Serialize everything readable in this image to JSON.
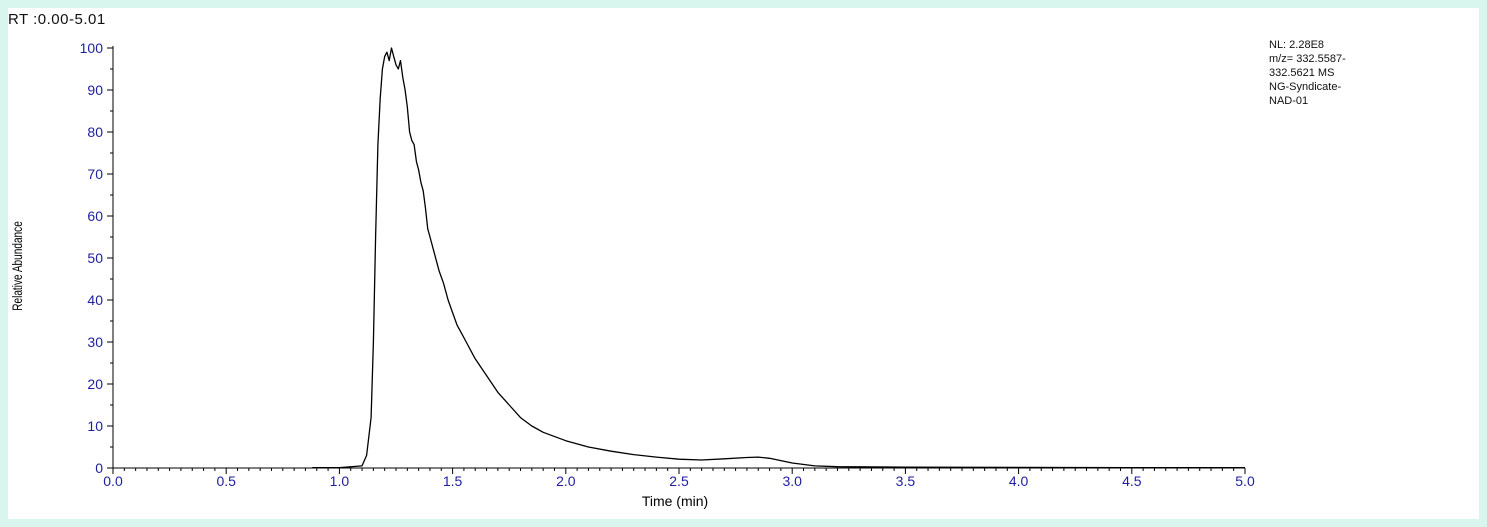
{
  "header": {
    "rt_range": "RT :0.00-5.01"
  },
  "info": {
    "lines": [
      "NL: 2.28E8",
      "m/z= 332.5587-",
      "332.5621 MS",
      "NG-Syndicate-",
      "NAD-01"
    ]
  },
  "colors": {
    "page_background": "#d8f6ee",
    "tick_label": "#1e1ea0",
    "trace": "#000000"
  },
  "chart_data": {
    "type": "line",
    "title": "",
    "xlabel": "Time (min)",
    "ylabel": "Relative Abundance",
    "xlim": [
      0.0,
      5.0
    ],
    "ylim": [
      0,
      100
    ],
    "x_ticks": [
      "0.0",
      "0.5",
      "1.0",
      "1.5",
      "2.0",
      "2.5",
      "3.0",
      "3.5",
      "4.0",
      "4.5",
      "5.0"
    ],
    "y_ticks": [
      "0",
      "10",
      "20",
      "30",
      "40",
      "50",
      "60",
      "70",
      "80",
      "90",
      "100"
    ],
    "grid": false,
    "series": [
      {
        "x": [
          0.88,
          1.0,
          1.1,
          1.12,
          1.14,
          1.15,
          1.16,
          1.17,
          1.18,
          1.19,
          1.2,
          1.21,
          1.22,
          1.23,
          1.24,
          1.25,
          1.26,
          1.27,
          1.28,
          1.29,
          1.3,
          1.31,
          1.32,
          1.33,
          1.34,
          1.35,
          1.36,
          1.37,
          1.38,
          1.39,
          1.4,
          1.42,
          1.44,
          1.46,
          1.48,
          1.5,
          1.52,
          1.54,
          1.56,
          1.58,
          1.6,
          1.65,
          1.7,
          1.75,
          1.8,
          1.85,
          1.9,
          2.0,
          2.1,
          2.2,
          2.3,
          2.4,
          2.5,
          2.6,
          2.7,
          2.8,
          2.85,
          2.9,
          3.0,
          3.1,
          3.2,
          3.5,
          4.0,
          4.5,
          5.0
        ],
        "y": [
          0.1,
          0.1,
          0.5,
          3,
          12,
          30,
          55,
          77,
          88,
          95,
          98,
          99,
          97,
          100,
          98,
          96,
          95,
          97,
          93,
          90,
          86,
          80,
          78,
          77,
          73,
          71,
          68,
          66,
          62,
          57,
          55,
          51,
          47,
          44,
          40,
          37,
          34,
          32,
          30,
          28,
          26,
          22,
          18,
          15,
          12,
          10,
          8.5,
          6.5,
          5,
          4,
          3.2,
          2.6,
          2.1,
          1.9,
          2.2,
          2.5,
          2.6,
          2.3,
          1.2,
          0.5,
          0.3,
          0.2,
          0.15,
          0.1,
          0.1
        ]
      }
    ]
  }
}
